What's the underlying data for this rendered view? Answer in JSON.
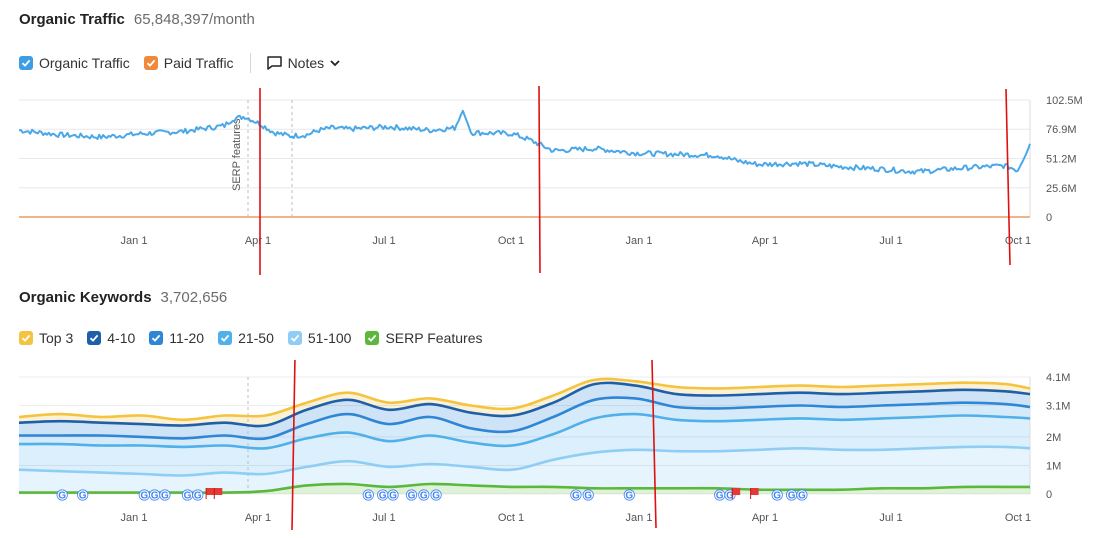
{
  "traffic": {
    "title": "Organic Traffic",
    "value": "65,848,397/month",
    "legend": [
      {
        "label": "Organic Traffic",
        "color": "#3d9ee5"
      },
      {
        "label": "Paid Traffic",
        "color": "#f0893b"
      }
    ],
    "notes_label": "Notes"
  },
  "keywords": {
    "title": "Organic Keywords",
    "value": "3,702,656",
    "legend": [
      {
        "label": "Top 3",
        "color": "#f4c33f"
      },
      {
        "label": "4-10",
        "color": "#1e5fa8"
      },
      {
        "label": "11-20",
        "color": "#2f86d6"
      },
      {
        "label": "21-50",
        "color": "#4fb0ea"
      },
      {
        "label": "51-100",
        "color": "#90cdf5"
      },
      {
        "label": "SERP Features",
        "color": "#5cb83d"
      }
    ]
  },
  "chart_data": [
    {
      "type": "line",
      "title": "Organic Traffic",
      "x_tick_labels": [
        "Jan 1",
        "Apr 1",
        "Jul 1",
        "Oct 1",
        "Jan 1",
        "Apr 1",
        "Jul 1",
        "Oct 1"
      ],
      "y_tick_labels": [
        "102.5M",
        "76.9M",
        "51.2M",
        "25.6M",
        "0"
      ],
      "ylim": [
        0,
        102.5
      ],
      "y_unit": "M",
      "annotation": "SERP features",
      "grid": true,
      "x_range": [
        0,
        24.6
      ],
      "series": [
        {
          "name": "Organic Traffic",
          "color": "#4aa8e8",
          "x": [
            0,
            1,
            2,
            3,
            4,
            5,
            5.2,
            5.5,
            5.9,
            6.2,
            6.6,
            7,
            7.3,
            7.6,
            8,
            9,
            10,
            10.6,
            10.8,
            11,
            12,
            12.4,
            12.7,
            13,
            14,
            15,
            16,
            17,
            17.5,
            18,
            19,
            20,
            21,
            21.7,
            22,
            23,
            24,
            24.3,
            24.6
          ],
          "y": [
            76,
            72,
            70,
            73,
            75,
            80,
            86,
            88,
            81,
            74,
            71,
            72,
            76,
            78,
            77,
            79,
            76,
            78,
            93,
            74,
            73,
            68,
            63,
            58,
            60,
            56,
            55,
            54,
            49,
            46,
            47,
            44,
            42,
            40,
            40,
            43,
            45,
            41,
            64
          ]
        },
        {
          "name": "Paid Traffic",
          "color": "#f0b48a",
          "x": [
            0,
            24.6
          ],
          "y": [
            0,
            0
          ]
        }
      ]
    },
    {
      "type": "area",
      "title": "Organic Keywords",
      "x_tick_labels": [
        "Jan 1",
        "Apr 1",
        "Jul 1",
        "Oct 1",
        "Jan 1",
        "Apr 1",
        "Jul 1",
        "Oct 1"
      ],
      "y_tick_labels": [
        "4.1M",
        "3.1M",
        "2M",
        "1M",
        "0"
      ],
      "ylim": [
        0,
        4.1
      ],
      "y_unit": "M",
      "grid": true,
      "x_range": [
        0,
        24.6
      ],
      "x": [
        0,
        1,
        2,
        3,
        4,
        5,
        6,
        7,
        8,
        9,
        10,
        11,
        12,
        13,
        14,
        15,
        16,
        17,
        18,
        19,
        20,
        21,
        22,
        23,
        24,
        24.6
      ],
      "series": [
        {
          "name": "Top 3",
          "color": "#f4c33f",
          "values": [
            2.7,
            2.8,
            2.7,
            2.75,
            2.6,
            2.75,
            2.75,
            3.2,
            3.55,
            3.2,
            3.35,
            3.1,
            3.0,
            3.45,
            4.0,
            3.95,
            3.75,
            3.7,
            3.75,
            3.8,
            3.75,
            3.8,
            3.85,
            3.9,
            3.85,
            3.7
          ]
        },
        {
          "name": "4-10",
          "color": "#1e5fa8",
          "values": [
            2.5,
            2.55,
            2.5,
            2.45,
            2.4,
            2.5,
            2.4,
            2.95,
            3.3,
            2.95,
            3.15,
            2.85,
            2.75,
            3.2,
            3.85,
            3.8,
            3.5,
            3.45,
            3.5,
            3.55,
            3.5,
            3.55,
            3.6,
            3.65,
            3.6,
            3.5
          ]
        },
        {
          "name": "11-20",
          "color": "#2f86d6",
          "values": [
            2.05,
            2.05,
            2.05,
            2.0,
            1.95,
            2.05,
            1.95,
            2.45,
            2.8,
            2.45,
            2.7,
            2.3,
            2.2,
            2.7,
            3.3,
            3.35,
            3.05,
            3.0,
            3.05,
            3.1,
            3.05,
            3.1,
            3.15,
            3.2,
            3.15,
            3.05
          ]
        },
        {
          "name": "21-50",
          "color": "#4fb0ea",
          "values": [
            1.75,
            1.75,
            1.7,
            1.7,
            1.65,
            1.7,
            1.6,
            1.95,
            2.15,
            1.85,
            2.05,
            1.8,
            1.7,
            2.1,
            2.65,
            2.8,
            2.6,
            2.55,
            2.6,
            2.65,
            2.6,
            2.65,
            2.7,
            2.75,
            2.7,
            2.65
          ]
        },
        {
          "name": "51-100",
          "color": "#90cdf5",
          "values": [
            0.85,
            0.8,
            0.75,
            0.7,
            0.65,
            0.75,
            0.7,
            0.95,
            1.15,
            0.95,
            1.05,
            0.95,
            0.85,
            1.2,
            1.45,
            1.55,
            1.5,
            1.5,
            1.55,
            1.6,
            1.55,
            1.55,
            1.6,
            1.65,
            1.65,
            1.6
          ]
        },
        {
          "name": "SERP Features",
          "color": "#5cb83d",
          "values": [
            0.05,
            0.05,
            0.05,
            0.05,
            0.05,
            0.05,
            0.1,
            0.3,
            0.35,
            0.25,
            0.35,
            0.3,
            0.25,
            0.25,
            0.2,
            0.2,
            0.2,
            0.2,
            0.15,
            0.15,
            0.15,
            0.2,
            0.2,
            0.25,
            0.25,
            0.25
          ]
        }
      ],
      "marker_x": [
        1.05,
        1.55,
        3.05,
        3.3,
        3.55,
        4.1,
        4.35,
        8.5,
        8.85,
        9.1,
        9.55,
        9.85,
        10.15,
        13.55,
        13.85,
        14.85,
        17.05,
        17.3,
        18.45,
        18.8,
        19.05
      ],
      "flag_x": [
        4.65,
        4.85,
        17.45,
        17.9
      ]
    }
  ]
}
